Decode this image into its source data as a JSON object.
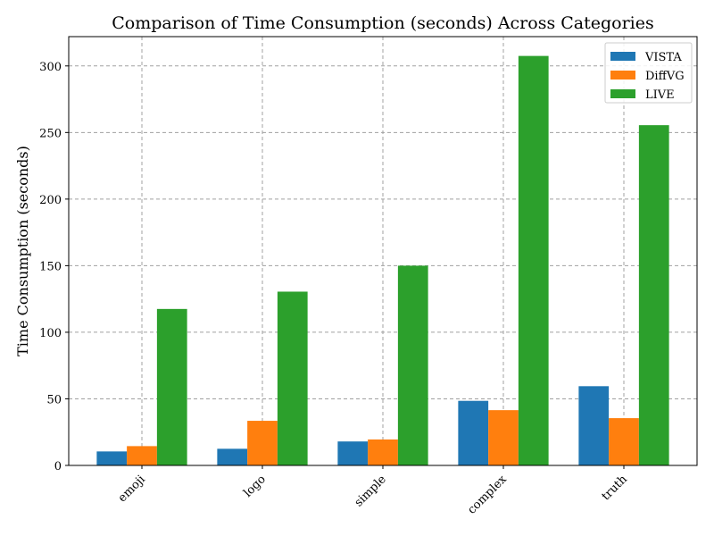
{
  "chart_data": {
    "type": "bar",
    "title": "Comparison of Time Consumption (seconds) Across Categories",
    "xlabel": "",
    "ylabel": "Time Consumption (seconds)",
    "categories": [
      "emoji",
      "logo",
      "simple",
      "complex",
      "truth"
    ],
    "series": [
      {
        "name": "VISTA",
        "color": "#1f77b4",
        "values": [
          10.5,
          12.5,
          18,
          48.5,
          59.5
        ]
      },
      {
        "name": "DiffVG",
        "color": "#ff7f0e",
        "values": [
          14.5,
          33.5,
          19.5,
          41.5,
          35.5
        ]
      },
      {
        "name": "LIVE",
        "color": "#2ca02c",
        "values": [
          117.5,
          130.5,
          150,
          307.5,
          255.5
        ]
      }
    ],
    "ylim": [
      0,
      322
    ],
    "yticks": [
      0,
      50,
      100,
      150,
      200,
      250,
      300
    ],
    "grid": true,
    "legend_position": "top-right",
    "xtick_rotation": 45
  }
}
